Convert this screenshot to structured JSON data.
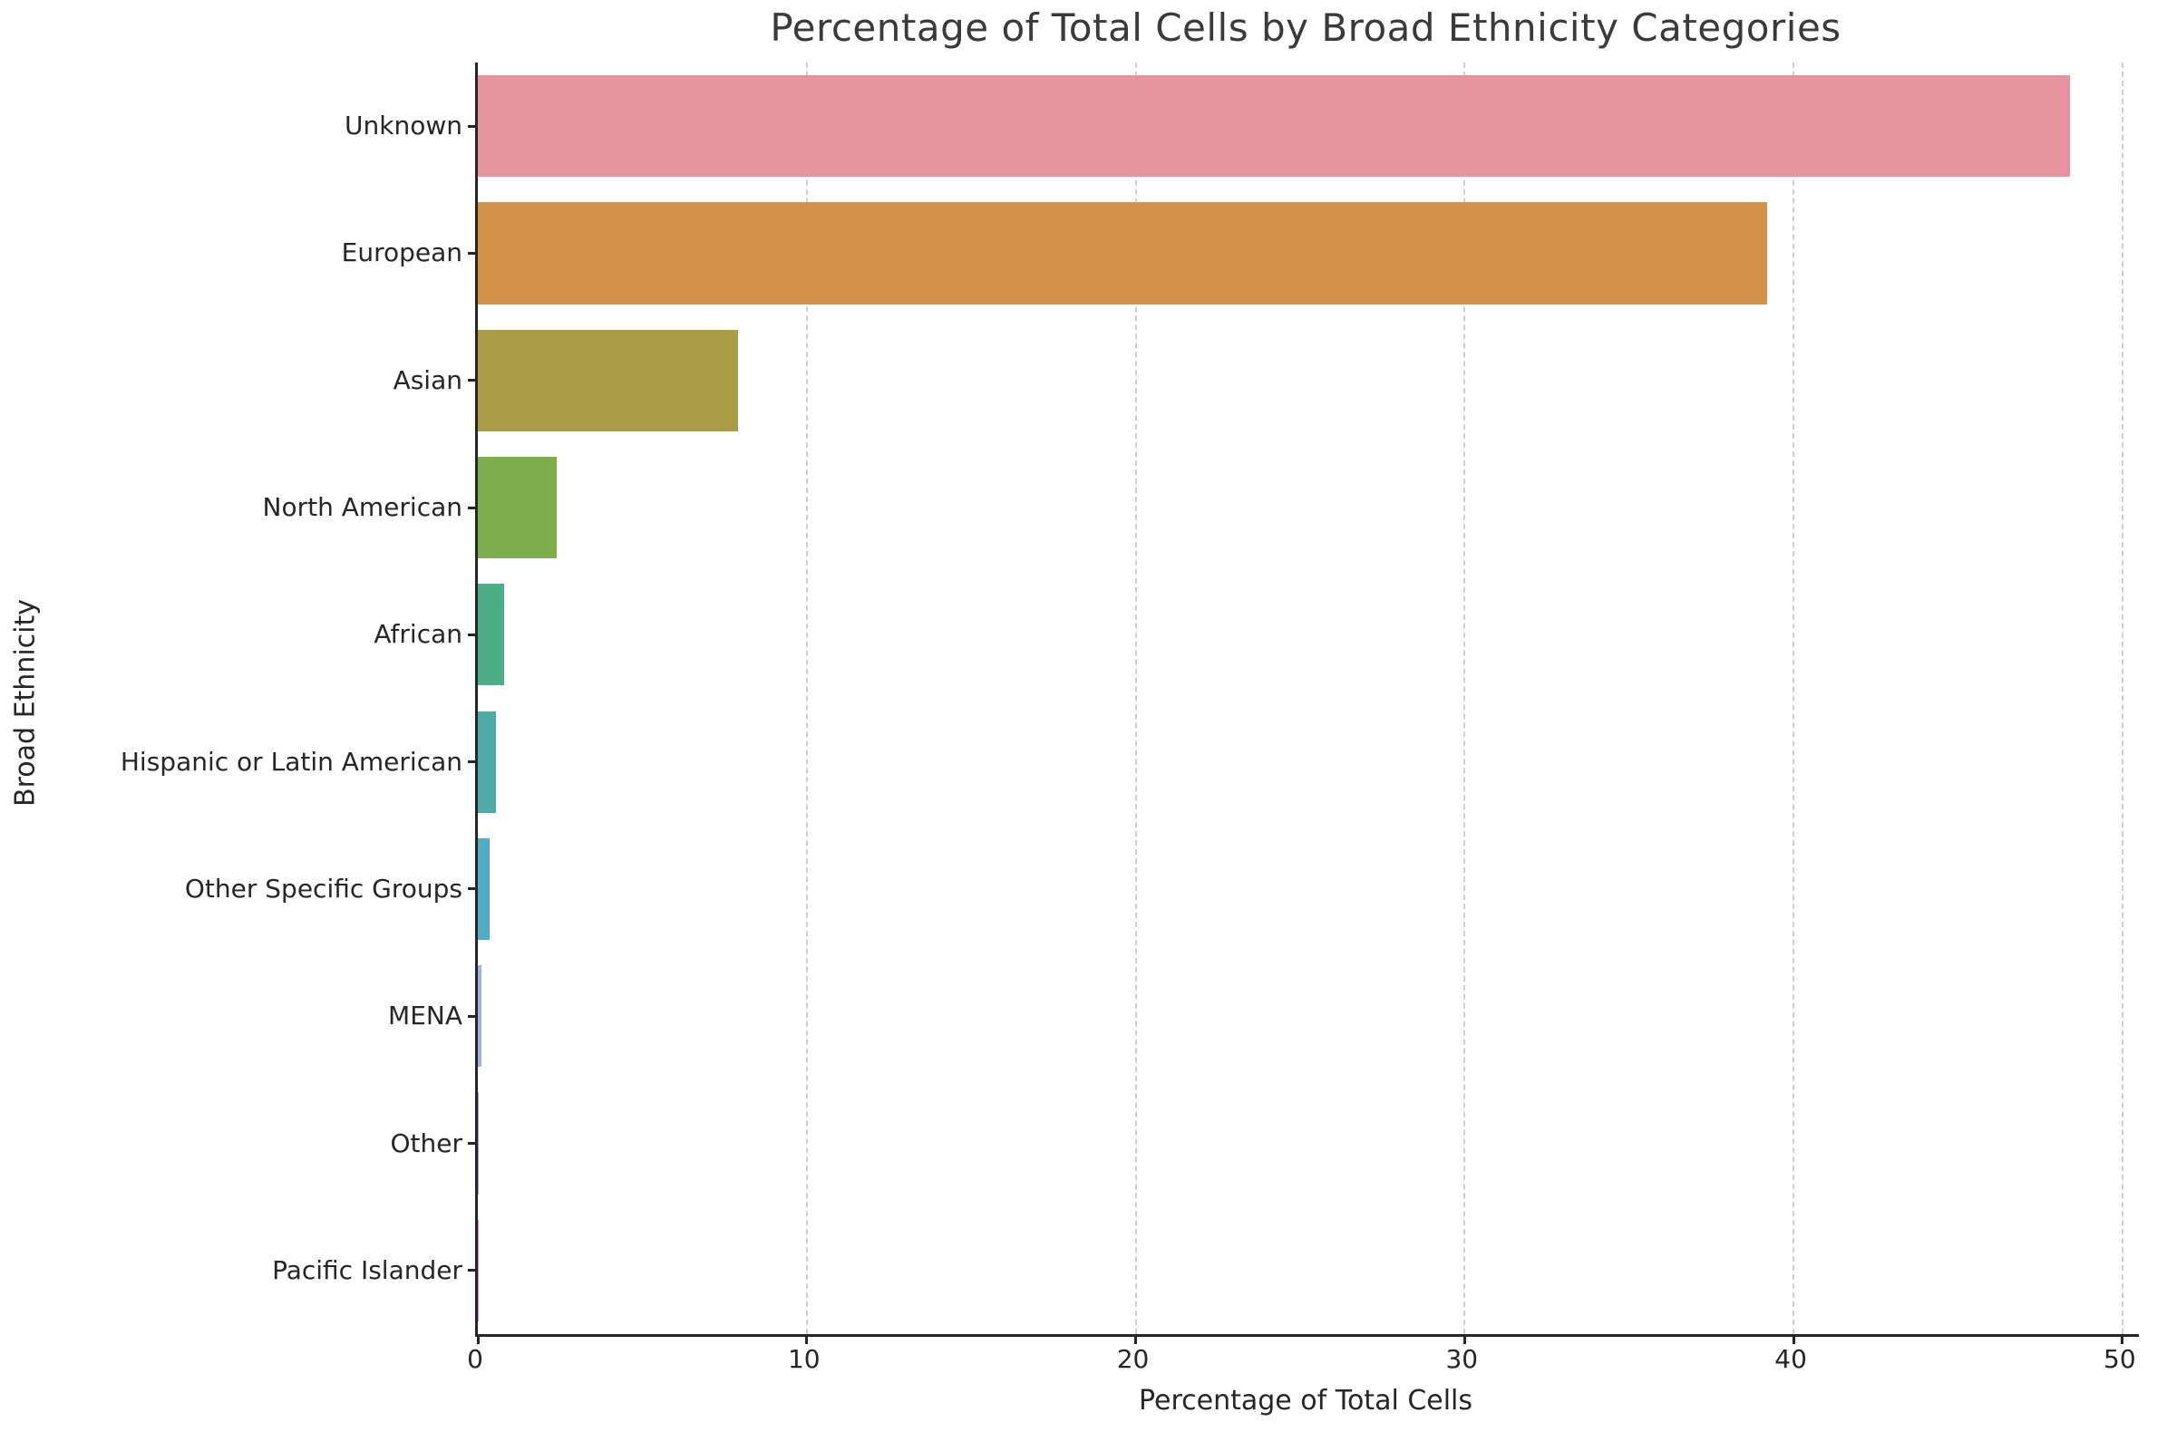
{
  "chart_data": {
    "type": "bar",
    "orientation": "horizontal",
    "title": "Percentage of Total Cells by Broad Ethnicity Categories",
    "xlabel": "Percentage of Total Cells",
    "ylabel": "Broad Ethnicity",
    "categories": [
      "Unknown",
      "European",
      "Asian",
      "North American",
      "African",
      "Hispanic or Latin American",
      "Other Specific Groups",
      "MENA",
      "Other",
      "Pacific Islander"
    ],
    "values": [
      48.4,
      39.2,
      7.9,
      2.4,
      0.8,
      0.55,
      0.35,
      0.1,
      0.02,
      0.01
    ],
    "bar_colors": [
      "#e6939f",
      "#d39349",
      "#aa9d45",
      "#7fac4c",
      "#4bae85",
      "#4daaa6",
      "#52abc5",
      "#9fb2e2",
      "#a995e3",
      "#e77fd4"
    ],
    "x_ticks": [
      0,
      10,
      20,
      30,
      40,
      50
    ],
    "xlim": [
      0,
      50.5
    ],
    "grid": "vertical-dashed",
    "gridline_color": "#cfcfcf",
    "spine_color": "#262626",
    "legend": "none"
  }
}
